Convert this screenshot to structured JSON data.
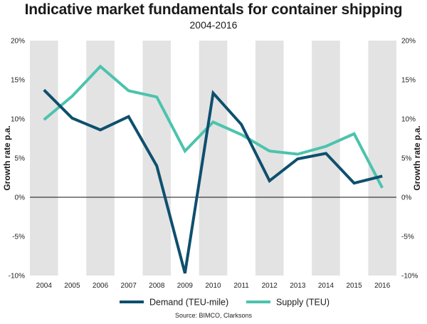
{
  "title": "Indicative market fundamentals for container shipping",
  "subtitle": "2004-2016",
  "source": "Source: BIMCO, Clarksons",
  "colors": {
    "demand": "#0e4f6e",
    "supply": "#4cc3ad",
    "band": "#e3e3e3"
  },
  "chart_data": {
    "type": "line",
    "x": [
      "2004",
      "2005",
      "2006",
      "2007",
      "2008",
      "2009",
      "2010",
      "2011",
      "2012",
      "2013",
      "2014",
      "2015",
      "2016"
    ],
    "series": [
      {
        "name": "Demand (TEU-mile)",
        "values": [
          13.7,
          10.1,
          8.6,
          10.3,
          4.0,
          -9.7,
          13.3,
          9.3,
          2.1,
          4.9,
          5.6,
          1.8,
          2.7
        ]
      },
      {
        "name": "Supply (TEU)",
        "values": [
          9.9,
          12.9,
          16.7,
          13.6,
          12.8,
          5.9,
          9.6,
          8.0,
          5.9,
          5.5,
          6.5,
          8.1,
          1.2
        ]
      }
    ],
    "ylabel_left": "Growth rate p.a.",
    "ylabel_right": "Growth rate p.a.",
    "ylim": [
      -10,
      20
    ],
    "yticks": [
      "20%",
      "15%",
      "10%",
      "5%",
      "0%",
      "-5%",
      "-10%"
    ],
    "legend_position": "bottom",
    "background": "alternating vertical grey bands"
  }
}
